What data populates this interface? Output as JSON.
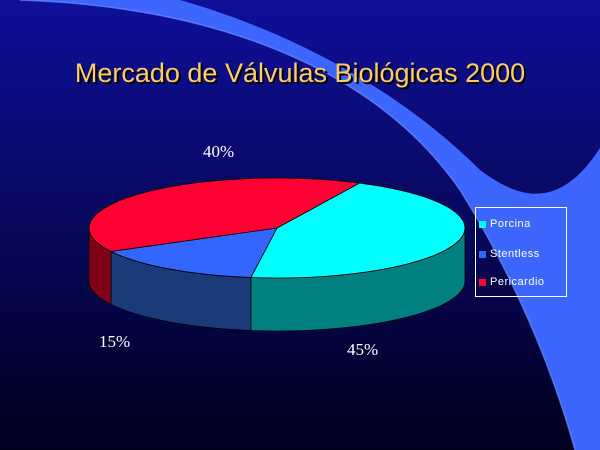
{
  "slide": {
    "title": "Mercado de Válvulas Biológicas  2000",
    "background_top": "#0f0f9a",
    "background_bottom": "#00001e",
    "swoosh_color": "#3d66ff",
    "title_color": "#ffcc66"
  },
  "chart_data": {
    "type": "pie",
    "title": "Mercado de Válvulas Biológicas  2000",
    "style": "3d",
    "legend_placement": "right",
    "slices": [
      {
        "name": "Porcina",
        "value": 45,
        "label": "45%",
        "top_color": "#00ffff",
        "side_color": "#008080"
      },
      {
        "name": "Stentless",
        "value": 15,
        "label": "15%",
        "top_color": "#3366ff",
        "side_color": "#1b3a7a"
      },
      {
        "name": "Pericardio",
        "value": 40,
        "label": "40%",
        "top_color": "#ff0033",
        "side_color": "#800018"
      }
    ]
  }
}
